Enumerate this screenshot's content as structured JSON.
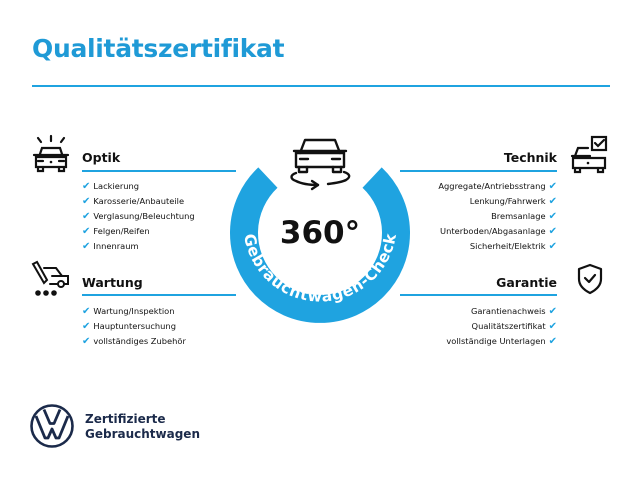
{
  "title": "Qualitätszertifikat",
  "center": {
    "degrees": "360°",
    "ring_text": "Gebrauchtwagen-Check",
    "accent": "#1fa3e0"
  },
  "sections": {
    "optik": {
      "icon": "car-lights-icon",
      "heading": "Optik",
      "items": [
        "Lackierung",
        "Karosserie/Anbauteile",
        "Verglasung/Beleuchtung",
        "Felgen/Reifen",
        "Innenraum"
      ]
    },
    "wartung": {
      "icon": "service-tools-icon",
      "heading": "Wartung",
      "items": [
        "Wartung/Inspektion",
        "Hauptuntersuchung",
        "vollständiges Zubehör"
      ]
    },
    "technik": {
      "icon": "car-checkbox-icon",
      "heading": "Technik",
      "items": [
        "Aggregate/Antriebsstrang",
        "Lenkung/Fahrwerk",
        "Bremsanlage",
        "Unterboden/Abgasanlage",
        "Sicherheit/Elektrik"
      ]
    },
    "garantie": {
      "icon": "shield-check-icon",
      "heading": "Garantie",
      "items": [
        "Garantienachweis",
        "Qualitätszertifikat",
        "vollständige Unterlagen"
      ]
    }
  },
  "check_glyph": "✔",
  "brand": {
    "line1": "Zertifizierte",
    "line2": "Gebrauchtwagen"
  }
}
